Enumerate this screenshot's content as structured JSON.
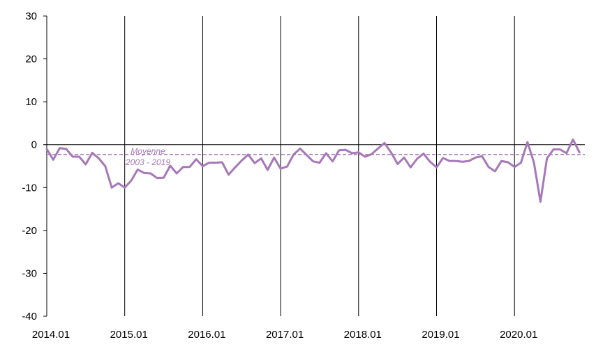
{
  "chart_data": {
    "type": "line",
    "title": "",
    "xlabel": "",
    "ylabel": "",
    "ylim": [
      -40,
      30
    ],
    "yticks": [
      30,
      20,
      10,
      0,
      -10,
      -20,
      -30,
      -40
    ],
    "x_tick_labels": [
      "2014.01",
      "2015.01",
      "2016.01",
      "2017.01",
      "2018.01",
      "2019.01",
      "2020.01"
    ],
    "x_start": "2014.01",
    "x_end": "2020.10",
    "vertical_gridlines_at_years": true,
    "annotation": {
      "line1": "Moyenne",
      "line2": "2003 - 2019"
    },
    "average_line": {
      "value": -2.3,
      "style": "dashed"
    },
    "series": [
      {
        "color": "#a678b8",
        "values": [
          -1.0,
          -3.5,
          -0.8,
          -1.0,
          -2.8,
          -2.8,
          -4.6,
          -1.9,
          -3.2,
          -5.0,
          -10.0,
          -9.0,
          -10.0,
          -8.4,
          -5.8,
          -6.6,
          -6.7,
          -7.8,
          -7.7,
          -4.9,
          -6.7,
          -5.2,
          -5.2,
          -3.4,
          -5.0,
          -4.2,
          -4.2,
          -4.1,
          -7.0,
          -5.3,
          -3.7,
          -2.3,
          -4.3,
          -3.2,
          -5.9,
          -3.0,
          -5.6,
          -5.1,
          -2.3,
          -0.9,
          -2.4,
          -3.9,
          -4.2,
          -2.0,
          -3.9,
          -1.3,
          -1.2,
          -2.0,
          -1.8,
          -2.8,
          -2.2,
          -0.9,
          0.4,
          -1.8,
          -4.5,
          -3.0,
          -5.3,
          -3.3,
          -2.1,
          -4.0,
          -5.3,
          -3.1,
          -3.8,
          -3.8,
          -4.0,
          -3.8,
          -3.0,
          -2.7,
          -5.2,
          -6.2,
          -3.8,
          -4.1,
          -5.2,
          -4.2,
          0.6,
          -4.2,
          -13.3,
          -3.2,
          -1.1,
          -1.1,
          -2.0,
          1.2,
          -1.8
        ]
      }
    ]
  }
}
